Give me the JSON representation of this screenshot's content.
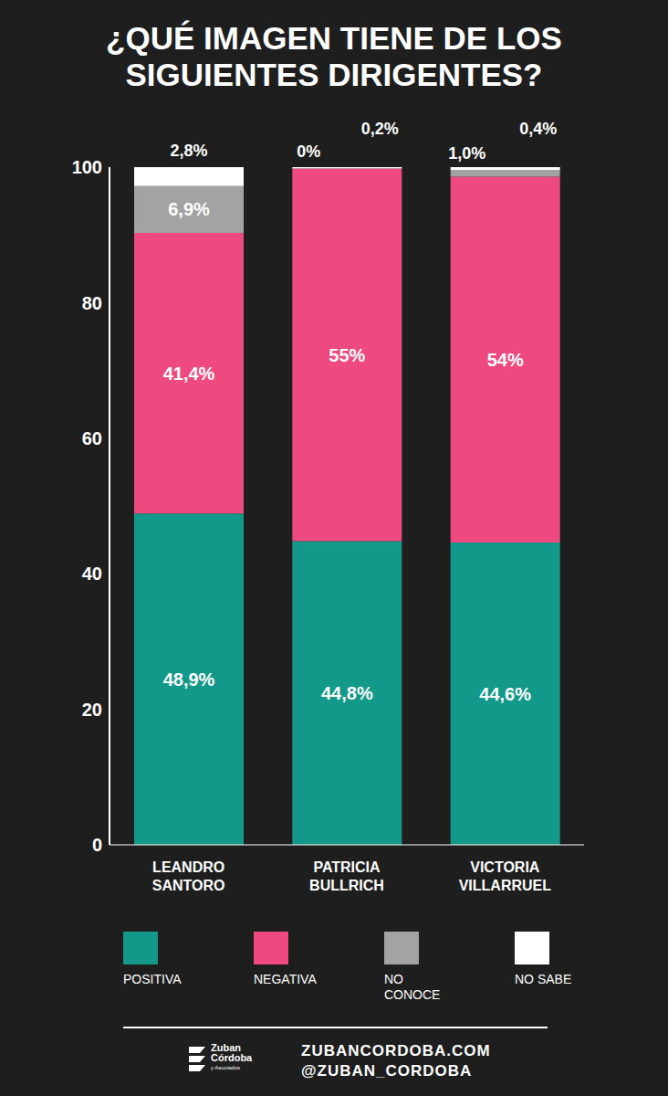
{
  "chart_data": {
    "type": "bar",
    "title": "¿QUÉ IMAGEN TIENE DE LOS SIGUIENTES DIRIGENTES?",
    "stacked": true,
    "data_labels": true,
    "grid": false,
    "legend": "bottom",
    "categories": [
      "LEANDRO SANTORO",
      "PATRICIA BULLRICH",
      "VICTORIA VILLARRUEL"
    ],
    "ylim": [
      0,
      100
    ],
    "yticks": [
      0,
      20,
      40,
      60,
      80,
      100
    ],
    "series": [
      {
        "name": "POSITIVA",
        "color": "#13998a",
        "values": [
          48.9,
          44.8,
          44.6
        ],
        "value_labels": [
          "48,9%",
          "44,8%",
          "44,6%"
        ]
      },
      {
        "name": "NEGATIVA",
        "color": "#ee4a80",
        "values": [
          41.4,
          55,
          54
        ],
        "value_labels": [
          "41,4%",
          "55%",
          "54%"
        ]
      },
      {
        "name": "NO CONOCE",
        "color": "#a3a3a3",
        "values": [
          6.9,
          0,
          1.0
        ],
        "value_labels": [
          "6,9%",
          "0%",
          "1,0%"
        ]
      },
      {
        "name": "NO SABE",
        "color": "#ffffff",
        "values": [
          2.8,
          0.2,
          0.4
        ],
        "value_labels": [
          "2,8%",
          "0,2%",
          "0,4%"
        ]
      }
    ]
  },
  "footer": {
    "logo": [
      "Zuban",
      "Córdoba",
      "y Asociados"
    ],
    "website": "ZUBANCORDOBA.COM",
    "twitter": "@ZUBAN_CORDOBA"
  }
}
